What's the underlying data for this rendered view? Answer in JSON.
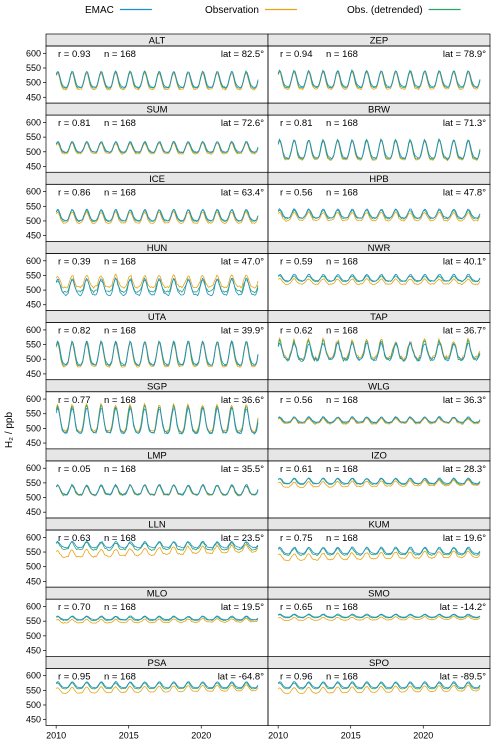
{
  "legend": {
    "entries": [
      {
        "label": "EMAC",
        "color": "#1f8fc8"
      },
      {
        "label": "Observation",
        "color": "#e8a317"
      },
      {
        "label": "Obs. (detrended)",
        "color": "#2aa36b"
      }
    ]
  },
  "chart_data": {
    "type": "line",
    "layout": "small-multiples",
    "columns": 2,
    "ylabel": "H₂ / ppb",
    "xlim": [
      2009.3,
      2024.6
    ],
    "ylim": [
      430,
      625
    ],
    "x_ticks": [
      2010,
      2015,
      2020
    ],
    "y_ticks": [
      450,
      500,
      550,
      600
    ],
    "series_names": [
      "EMAC",
      "Observation",
      "Obs. (detrended)"
    ],
    "colors": {
      "EMAC": "#1f8fc8",
      "Observation": "#e8a317",
      "Obs. (detrended)": "#2aa36b"
    },
    "n_points": 168,
    "x_start": 2010.0,
    "x_step_years": 0.0833,
    "panels": [
      {
        "station": "ALT",
        "r": "r = 0.93",
        "n": "n = 168",
        "lat": "lat = 82.5°",
        "model_mean": 505,
        "model_amp": 27,
        "obs_mean": 498,
        "obs_amp": 28,
        "obs_trend": 0,
        "noise": 4
      },
      {
        "station": "ZEP",
        "r": "r = 0.94",
        "n": "n = 168",
        "lat": "lat = 78.9°",
        "model_mean": 507,
        "model_amp": 27,
        "obs_mean": 500,
        "obs_amp": 29,
        "obs_trend": 0,
        "noise": 4
      },
      {
        "station": "SUM",
        "r": "r = 0.81",
        "n": "n = 168",
        "lat": "lat = 72.6°",
        "model_mean": 513,
        "model_amp": 18,
        "obs_mean": 507,
        "obs_amp": 18,
        "obs_trend": 0,
        "noise": 4
      },
      {
        "station": "BRW",
        "r": "r = 0.81",
        "n": "n = 168",
        "lat": "lat = 71.3°",
        "model_mean": 502,
        "model_amp": 30,
        "obs_mean": 497,
        "obs_amp": 33,
        "obs_trend": 0,
        "noise": 5
      },
      {
        "station": "ICE",
        "r": "r = 0.86",
        "n": "n = 168",
        "lat": "lat = 63.4°",
        "model_mean": 516,
        "model_amp": 19,
        "obs_mean": 507,
        "obs_amp": 19,
        "obs_trend": 0,
        "noise": 4
      },
      {
        "station": "HPB",
        "r": "r = 0.56",
        "n": "n = 168",
        "lat": "lat = 47.8°",
        "model_mean": 522,
        "model_amp": 15,
        "obs_mean": 512,
        "obs_amp": 14,
        "obs_trend": 0,
        "noise": 5
      },
      {
        "station": "HUN",
        "r": "r = 0.39",
        "n": "n = 168",
        "lat": "lat = 47.0°",
        "model_mean": 505,
        "model_amp": 28,
        "obs_mean": 525,
        "obs_amp": 20,
        "obs_trend": 0,
        "noise": 9
      },
      {
        "station": "NWR",
        "r": "r = 0.59",
        "n": "n = 168",
        "lat": "lat = 40.1°",
        "model_mean": 540,
        "model_amp": 11,
        "obs_mean": 527,
        "obs_amp": 9,
        "obs_trend": 0,
        "noise": 4
      },
      {
        "station": "UTA",
        "r": "r = 0.82",
        "n": "n = 168",
        "lat": "lat = 39.9°",
        "model_mean": 512,
        "model_amp": 40,
        "obs_mean": 505,
        "obs_amp": 40,
        "obs_trend": 0,
        "noise": 6
      },
      {
        "station": "TAP",
        "r": "r = 0.62",
        "n": "n = 168",
        "lat": "lat = 36.7°",
        "model_mean": 520,
        "model_amp": 28,
        "obs_mean": 528,
        "obs_amp": 30,
        "obs_trend": 0,
        "noise": 14
      },
      {
        "station": "SGP",
        "r": "r = 0.77",
        "n": "n = 168",
        "lat": "lat = 36.6°",
        "model_mean": 517,
        "model_amp": 42,
        "obs_mean": 525,
        "obs_amp": 46,
        "obs_trend": 0,
        "noise": 8
      },
      {
        "station": "WLG",
        "r": "r = 0.56",
        "n": "n = 168",
        "lat": "lat = 36.3°",
        "model_mean": 528,
        "model_amp": 9,
        "obs_mean": 523,
        "obs_amp": 9,
        "obs_trend": 0,
        "noise": 5
      },
      {
        "station": "LMP",
        "r": "r = 0.05",
        "n": "n = 168",
        "lat": "lat = 35.5°",
        "model_mean": 523,
        "model_amp": 17,
        "obs_mean": 520,
        "obs_amp": 16,
        "obs_trend": 0,
        "noise": 6
      },
      {
        "station": "IZO",
        "r": "r = 0.61",
        "n": "n = 168",
        "lat": "lat = 28.3°",
        "model_mean": 555,
        "model_amp": 9,
        "obs_mean": 545,
        "obs_amp": 9,
        "obs_trend": 0.6,
        "noise": 3
      },
      {
        "station": "LLN",
        "r": "r = 0.63",
        "n": "n = 168",
        "lat": "lat = 23.5°",
        "model_mean": 573,
        "model_amp": 10,
        "obs_mean": 550,
        "obs_amp": 12,
        "obs_trend": 1.5,
        "noise": 6
      },
      {
        "station": "KUM",
        "r": "r = 0.75",
        "n": "n = 168",
        "lat": "lat = 19.6°",
        "model_mean": 553,
        "model_amp": 11,
        "obs_mean": 535,
        "obs_amp": 11,
        "obs_trend": 0.8,
        "noise": 4
      },
      {
        "station": "MLO",
        "r": "r = 0.70",
        "n": "n = 168",
        "lat": "lat = 19.5°",
        "model_mean": 560,
        "model_amp": 6,
        "obs_mean": 550,
        "obs_amp": 6,
        "obs_trend": 0.3,
        "noise": 3
      },
      {
        "station": "SMO",
        "r": "r = 0.65",
        "n": "n = 168",
        "lat": "lat = -14.2°",
        "model_mean": 568,
        "model_amp": 5,
        "obs_mean": 558,
        "obs_amp": 5,
        "obs_trend": 0.3,
        "noise": 2
      },
      {
        "station": "PSA",
        "r": "r = 0.95",
        "n": "n = 168",
        "lat": "lat = -64.8°",
        "model_mean": 567,
        "model_amp": 10,
        "obs_mean": 552,
        "obs_amp": 10,
        "obs_trend": 0.7,
        "noise": 2
      },
      {
        "station": "SPO",
        "r": "r = 0.96",
        "n": "n = 168",
        "lat": "lat = -89.5°",
        "model_mean": 567,
        "model_amp": 10,
        "obs_mean": 551,
        "obs_amp": 10,
        "obs_trend": 0.7,
        "noise": 2
      }
    ]
  }
}
